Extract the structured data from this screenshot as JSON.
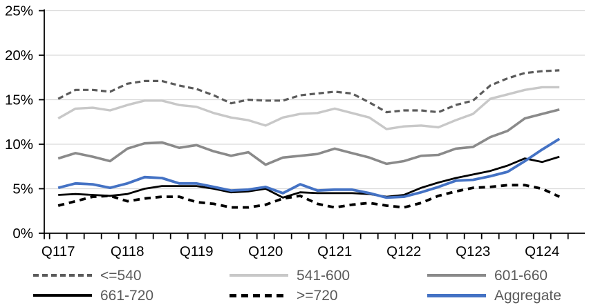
{
  "chart_data": {
    "type": "line",
    "title": "",
    "n_points": 30,
    "x_axis": {
      "tick_labels": [
        "Q117",
        "Q118",
        "Q119",
        "Q120",
        "Q121",
        "Q122",
        "Q123",
        "Q124"
      ],
      "label_every_n_points": 4,
      "minor_ticks_every_point": true
    },
    "y_axis": {
      "min": 0,
      "max": 25,
      "tick_step": 5,
      "tick_labels": [
        "0%",
        "5%",
        "10%",
        "15%",
        "20%",
        "25%"
      ],
      "grid": true
    },
    "legend_position": "bottom",
    "colors": {
      "gridline": "#D9D9D9",
      "axis": "#000000",
      "axis_text": "#000000",
      "legend_text": "#595959",
      "accent_blue": "#4472C4"
    },
    "series": [
      {
        "name": "<=540",
        "color": "#5B5B5B",
        "dash": "dashed",
        "values": [
          15.1,
          16.1,
          16.1,
          15.9,
          16.8,
          17.1,
          17.1,
          16.6,
          16.2,
          15.5,
          14.6,
          15.0,
          14.9,
          14.9,
          15.5,
          15.7,
          15.9,
          15.7,
          14.7,
          13.6,
          13.8,
          13.8,
          13.6,
          14.4,
          14.9,
          16.6,
          17.4,
          18.0,
          18.2,
          18.3
        ]
      },
      {
        "name": "541-600",
        "color": "#C8C8C8",
        "dash": "solid",
        "values": [
          12.9,
          14.0,
          14.1,
          13.8,
          14.4,
          14.9,
          14.9,
          14.4,
          14.2,
          13.5,
          13.0,
          12.7,
          12.1,
          13.0,
          13.4,
          13.5,
          14.0,
          13.5,
          13.0,
          11.7,
          12.0,
          12.1,
          11.9,
          12.7,
          13.4,
          15.1,
          15.6,
          16.1,
          16.4,
          16.4
        ]
      },
      {
        "name": "601-660",
        "color": "#8A8A8A",
        "dash": "solid",
        "values": [
          8.4,
          9.0,
          8.6,
          8.1,
          9.5,
          10.1,
          10.2,
          9.6,
          9.9,
          9.2,
          8.7,
          9.1,
          7.7,
          8.5,
          8.7,
          8.9,
          9.5,
          9.0,
          8.5,
          7.8,
          8.1,
          8.7,
          8.8,
          9.5,
          9.7,
          10.8,
          11.5,
          12.9,
          13.4,
          13.9
        ]
      },
      {
        "name": "661-720",
        "color": "#000000",
        "dash": "solid",
        "values": [
          4.3,
          4.4,
          4.3,
          4.2,
          4.4,
          5.0,
          5.3,
          5.3,
          5.3,
          5.0,
          4.6,
          4.7,
          5.0,
          4.0,
          4.6,
          4.5,
          4.5,
          4.5,
          4.4,
          4.1,
          4.3,
          5.1,
          5.7,
          6.2,
          6.6,
          7.0,
          7.6,
          8.4,
          8.0,
          8.6
        ]
      },
      {
        "name": ">=720",
        "color": "#000000",
        "dash": "dashed",
        "values": [
          3.1,
          3.6,
          4.1,
          4.2,
          3.6,
          3.9,
          4.1,
          4.1,
          3.5,
          3.3,
          2.9,
          2.9,
          3.2,
          3.9,
          4.2,
          3.3,
          2.9,
          3.2,
          3.4,
          3.1,
          2.9,
          3.4,
          4.2,
          4.7,
          5.1,
          5.2,
          5.4,
          5.4,
          5.0,
          4.1
        ]
      },
      {
        "name": "Aggregate",
        "color": "#4472C4",
        "dash": "solid",
        "values": [
          5.1,
          5.6,
          5.5,
          5.1,
          5.6,
          6.3,
          6.2,
          5.6,
          5.6,
          5.2,
          4.8,
          4.9,
          5.2,
          4.5,
          5.5,
          4.8,
          4.9,
          4.9,
          4.5,
          4.0,
          4.1,
          4.6,
          5.2,
          5.9,
          6.0,
          6.4,
          6.9,
          8.1,
          9.4,
          10.6
        ]
      }
    ]
  }
}
